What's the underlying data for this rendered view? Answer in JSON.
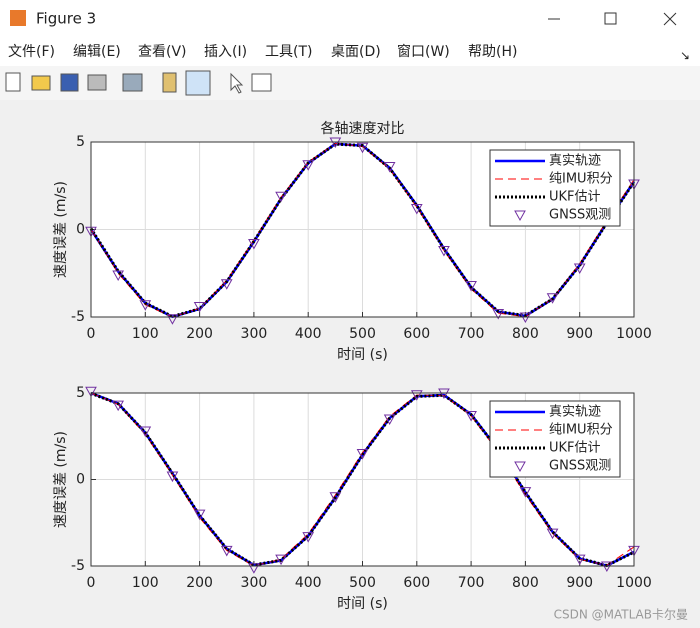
{
  "window": {
    "title": "Figure 3",
    "menu": [
      "文件(F)",
      "编辑(E)",
      "查看(V)",
      "插入(I)",
      "工具(T)",
      "桌面(D)",
      "窗口(W)",
      "帮助(H)"
    ]
  },
  "watermark": "CSDN @MATLAB卡尔曼",
  "chart_data": [
    {
      "type": "line",
      "title": "各轴速度对比",
      "xlabel": "时间 (s)",
      "ylabel": "速度误差 (m/s)",
      "x": [
        0,
        50,
        100,
        150,
        200,
        250,
        300,
        350,
        400,
        450,
        500,
        550,
        600,
        650,
        700,
        750,
        800,
        850,
        900,
        950,
        1000
      ],
      "xlim": [
        0,
        1000
      ],
      "ylim": [
        -5,
        5
      ],
      "xticks": [
        0,
        100,
        200,
        300,
        400,
        500,
        600,
        700,
        800,
        900,
        1000
      ],
      "yticks": [
        -5,
        0,
        5
      ],
      "grid": true,
      "legend": "upper right",
      "series": [
        {
          "name": "真实轨迹",
          "color": "#0000ff",
          "style": "solid",
          "values": [
            0,
            -2.4,
            -4.21,
            -4.99,
            -4.54,
            -2.99,
            -0.7,
            1.76,
            3.79,
            4.89,
            4.79,
            3.52,
            1.38,
            -1.09,
            -3.3,
            -4.7,
            -4.94,
            -3.98,
            -2.04,
            0.4,
            2.74
          ]
        },
        {
          "name": "纯IMU积分",
          "color": "#ff0000",
          "style": "dashed",
          "values": [
            0,
            -2.5,
            -4.3,
            -5.0,
            -4.5,
            -2.9,
            -0.6,
            1.85,
            3.85,
            4.92,
            4.75,
            3.45,
            1.28,
            -1.2,
            -3.4,
            -4.78,
            -4.98,
            -3.95,
            -1.95,
            0.5,
            2.85
          ]
        },
        {
          "name": "UKF估计",
          "color": "#000000",
          "style": "dotted",
          "values": [
            0.05,
            -2.38,
            -4.2,
            -4.97,
            -4.53,
            -2.98,
            -0.68,
            1.75,
            3.8,
            4.88,
            4.8,
            3.5,
            1.36,
            -1.1,
            -3.31,
            -4.69,
            -4.92,
            -3.97,
            -2.05,
            0.38,
            2.72
          ]
        },
        {
          "name": "GNSS观测",
          "color": "#7030a0",
          "style": "marker",
          "values": [
            -0.1,
            -2.6,
            -4.3,
            -5.1,
            -4.4,
            -3.1,
            -0.8,
            1.9,
            3.7,
            5.0,
            4.7,
            3.6,
            1.2,
            -1.2,
            -3.2,
            -4.8,
            -5.0,
            -3.9,
            -2.2,
            0.5,
            2.6
          ]
        }
      ]
    },
    {
      "type": "line",
      "xlabel": "时间 (s)",
      "ylabel": "速度误差 (m/s)",
      "x": [
        0,
        50,
        100,
        150,
        200,
        250,
        300,
        350,
        400,
        450,
        500,
        550,
        600,
        650,
        700,
        750,
        800,
        850,
        900,
        950,
        1000
      ],
      "xlim": [
        0,
        1000
      ],
      "ylim": [
        -5,
        5
      ],
      "xticks": [
        0,
        100,
        200,
        300,
        400,
        500,
        600,
        700,
        800,
        900,
        1000
      ],
      "yticks": [
        -5,
        0,
        5
      ],
      "grid": true,
      "legend": "upper right",
      "series": [
        {
          "name": "真实轨迹",
          "color": "#0000ff",
          "style": "solid",
          "values": [
            5.0,
            4.39,
            2.7,
            0.35,
            -2.09,
            -4.01,
            -4.95,
            -4.68,
            -3.26,
            -1.04,
            1.43,
            3.55,
            4.81,
            4.88,
            3.76,
            1.72,
            -0.75,
            -3.03,
            -4.57,
            -4.98,
            -4.18
          ]
        },
        {
          "name": "纯IMU积分",
          "color": "#ff0000",
          "style": "dashed",
          "values": [
            5.0,
            4.35,
            2.6,
            0.25,
            -2.2,
            -4.1,
            -5.0,
            -4.6,
            -3.15,
            -0.9,
            1.55,
            3.65,
            4.88,
            4.85,
            3.68,
            1.6,
            -0.88,
            -3.12,
            -4.62,
            -4.95,
            -3.9
          ]
        },
        {
          "name": "UKF估计",
          "color": "#000000",
          "style": "dotted",
          "values": [
            4.98,
            4.38,
            2.71,
            0.36,
            -2.08,
            -4.0,
            -4.94,
            -4.67,
            -3.27,
            -1.05,
            1.42,
            3.54,
            4.8,
            4.87,
            3.75,
            1.71,
            -0.74,
            -3.02,
            -4.56,
            -4.97,
            -4.2
          ]
        },
        {
          "name": "GNSS观测",
          "color": "#7030a0",
          "style": "marker",
          "values": [
            5.1,
            4.3,
            2.8,
            0.2,
            -2.0,
            -4.1,
            -5.1,
            -4.6,
            -3.3,
            -1.0,
            1.5,
            3.5,
            4.9,
            5.0,
            3.7,
            1.8,
            -0.7,
            -3.1,
            -4.6,
            -5.0,
            -4.1
          ]
        }
      ]
    }
  ]
}
